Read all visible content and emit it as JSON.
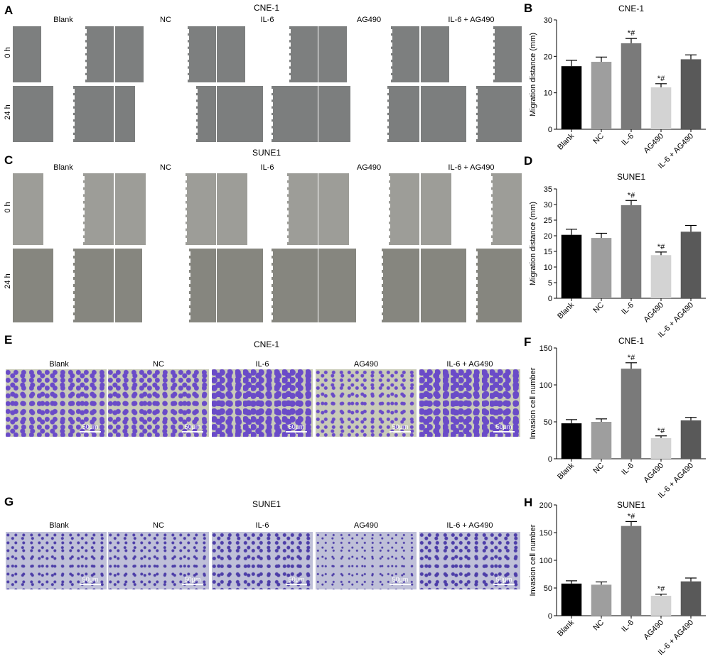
{
  "panels": {
    "A": {
      "letter": "A",
      "title": "CNE-1",
      "row_labels": [
        "0 h",
        "24 h"
      ]
    },
    "C": {
      "letter": "C",
      "title": "SUNE1",
      "row_labels": [
        "0 h",
        "24 h"
      ]
    },
    "E": {
      "letter": "E",
      "title": "CNE-1",
      "scale": "50μm"
    },
    "G": {
      "letter": "G",
      "title": "SUNE1",
      "scale": "50μm"
    }
  },
  "conditions": [
    "Blank",
    "NC",
    "IL-6",
    "AG490",
    "IL-6 + AG490"
  ],
  "colors": {
    "bars": [
      "#000000",
      "#9e9e9e",
      "#7a7a7a",
      "#d3d3d3",
      "#595959"
    ],
    "scratch": "#8a8a8a",
    "stain": "#6a4bc8"
  },
  "chart_data": [
    {
      "letter": "B",
      "type": "bar",
      "title": "CNE-1",
      "ylabel": "Migration distance (mm)",
      "xlabel": "",
      "categories": [
        "Blank",
        "NC",
        "IL-6",
        "AG490",
        "IL-6 + AG490"
      ],
      "values": [
        17.3,
        18.5,
        23.6,
        11.5,
        19.2
      ],
      "errors": [
        1.6,
        1.3,
        1.3,
        1.0,
        1.2
      ],
      "annotations": [
        "",
        "",
        "*#",
        "*#",
        ""
      ],
      "yticks": [
        0,
        10,
        20,
        30
      ],
      "ylim": [
        0,
        30
      ]
    },
    {
      "letter": "D",
      "type": "bar",
      "title": "SUNE1",
      "ylabel": "Migration distance (mm)",
      "xlabel": "",
      "categories": [
        "Blank",
        "NC",
        "IL-6",
        "AG490",
        "IL-6 + AG490"
      ],
      "values": [
        20.3,
        19.3,
        29.8,
        13.8,
        21.3
      ],
      "errors": [
        1.8,
        1.5,
        1.5,
        1.0,
        2.0
      ],
      "annotations": [
        "",
        "",
        "*#",
        "*#",
        ""
      ],
      "yticks": [
        0,
        5,
        10,
        15,
        20,
        25,
        30,
        35
      ],
      "ylim": [
        0,
        35
      ]
    },
    {
      "letter": "F",
      "type": "bar",
      "title": "CNE-1",
      "ylabel": "Invasion cell number",
      "xlabel": "",
      "categories": [
        "Blank",
        "NC",
        "IL-6",
        "AG490",
        "IL-6 + AG490"
      ],
      "values": [
        48,
        50,
        122,
        28,
        52
      ],
      "errors": [
        5,
        4,
        8,
        3,
        4
      ],
      "annotations": [
        "",
        "",
        "*#",
        "*#",
        ""
      ],
      "yticks": [
        0,
        50,
        100,
        150
      ],
      "ylim": [
        0,
        150
      ]
    },
    {
      "letter": "H",
      "type": "bar",
      "title": "SUNE1",
      "ylabel": "Invasion cell number",
      "xlabel": "",
      "categories": [
        "Blank",
        "NC",
        "IL-6",
        "AG490",
        "IL-6 + AG490"
      ],
      "values": [
        58,
        56,
        162,
        36,
        62
      ],
      "errors": [
        5,
        5,
        8,
        3,
        6
      ],
      "annotations": [
        "",
        "",
        "*#",
        "*#",
        ""
      ],
      "yticks": [
        0,
        50,
        100,
        150,
        200
      ],
      "ylim": [
        0,
        200
      ]
    }
  ]
}
